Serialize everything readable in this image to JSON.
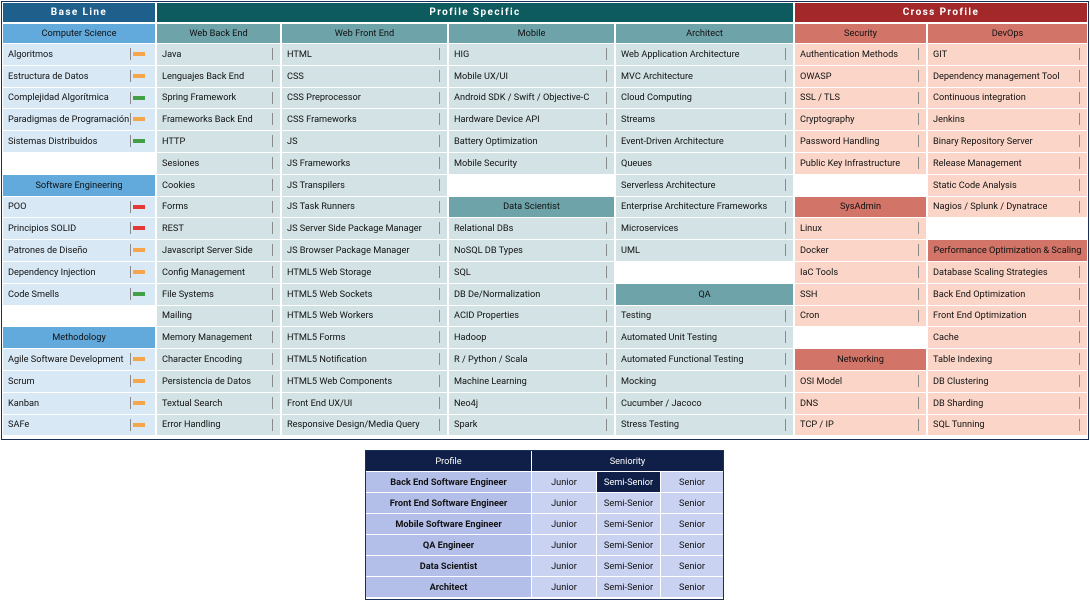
{
  "grid": {
    "sections": [
      {
        "title": "Base Line",
        "colors": {
          "title": "#1f5f8b",
          "header": "#62a9dc",
          "cell": "#d8e8f5"
        },
        "columns": [
          {
            "groups": [
              {
                "title": "Computer Science",
                "items": [
                  {
                    "name": "Algoritmos",
                    "color": "#f5a54a"
                  },
                  {
                    "name": "Estructura de Datos",
                    "color": "#f5a54a"
                  },
                  {
                    "name": "Complejidad Algorítmica",
                    "color": "#43a047"
                  },
                  {
                    "name": "Paradigmas de Programación",
                    "color": "#f5a54a"
                  },
                  {
                    "name": "Sistemas Distribuidos",
                    "color": "#43a047"
                  }
                ]
              },
              {
                "title": "Software Engineering",
                "items": [
                  {
                    "name": "POO",
                    "color": "#e53935"
                  },
                  {
                    "name": "Principios SOLID",
                    "color": "#e53935"
                  },
                  {
                    "name": "Patrones de Diseño",
                    "color": "#f5a54a"
                  },
                  {
                    "name": "Dependency Injection",
                    "color": "#f5a54a"
                  },
                  {
                    "name": "Code Smells",
                    "color": "#43a047"
                  }
                ]
              },
              {
                "title": "Methodology",
                "items": [
                  {
                    "name": "Agile Software Development",
                    "color": "#f5a54a"
                  },
                  {
                    "name": "Scrum",
                    "color": "#f5a54a"
                  },
                  {
                    "name": "Kanban",
                    "color": "#f5a54a"
                  },
                  {
                    "name": "SAFe",
                    "color": "#f5a54a"
                  }
                ]
              }
            ]
          }
        ]
      },
      {
        "title": "Profile Specific",
        "colors": {
          "title": "#0d5b5e",
          "header": "#6ea3a9",
          "cell": "#d2e2e5"
        },
        "columns": [
          {
            "groups": [
              {
                "title": "Web Back End",
                "items": [
                  "Java",
                  "Lenguajes Back End",
                  "Spring Framework",
                  "Frameworks Back End",
                  "HTTP",
                  "Sesiones",
                  "Cookies",
                  "Forms",
                  "REST",
                  "Javascript Server Side",
                  "Config Management",
                  "File Systems",
                  "Mailing",
                  "Memory Management",
                  "Character Encoding",
                  "Persistencia de Datos",
                  "Textual Search",
                  "Error Handling"
                ]
              }
            ]
          },
          {
            "groups": [
              {
                "title": "Web Front End",
                "items": [
                  "HTML",
                  "CSS",
                  "CSS Preprocessor",
                  "CSS Frameworks",
                  "JS",
                  "JS Frameworks",
                  "JS Transpilers",
                  "JS Task Runners",
                  "JS Server Side Package Manager",
                  "JS Browser Package Manager",
                  "HTML5 Web Storage",
                  "HTML5 Web Sockets",
                  "HTML5 Web Workers",
                  "HTML5 Forms",
                  "HTML5 Notification",
                  "HTML5 Web Components",
                  "Front End UX/UI",
                  "Responsive Design/Media Query"
                ]
              }
            ]
          },
          {
            "groups": [
              {
                "title": "Mobile",
                "items": [
                  "HIG",
                  "Mobile UX/UI",
                  "Android SDK / Swift / Objective-C",
                  "Hardware Device API",
                  "Battery Optimization",
                  "Mobile Security"
                ]
              },
              {
                "title": "Data Scientist",
                "items": [
                  "Relational DBs",
                  "NoSQL DB Types",
                  "SQL",
                  "DB De/Normalization",
                  "ACID Properties",
                  "Hadoop",
                  "R / Python / Scala",
                  "Machine Learning",
                  "Neo4j",
                  "Spark"
                ]
              }
            ]
          },
          {
            "groups": [
              {
                "title": "Architect",
                "items": [
                  "Web Application Architecture",
                  "MVC Architecture",
                  "Cloud Computing",
                  "Streams",
                  "Event-Driven Architecture",
                  "Queues",
                  "Serverless Architecture",
                  "Enterprise Architecture Frameworks",
                  "Microservices",
                  "UML"
                ]
              },
              {
                "title": "QA",
                "items": [
                  "Testing",
                  "Automated Unit Testing",
                  "Automated Functional Testing",
                  "Mocking",
                  "Cucumber / Jacoco",
                  "Stress Testing"
                ]
              }
            ]
          }
        ]
      },
      {
        "title": "Cross Profile",
        "colors": {
          "title": "#a3282a",
          "header": "#d27468",
          "cell": "#fbd6c8"
        },
        "columns": [
          {
            "groups": [
              {
                "title": "Security",
                "items": [
                  "Authentication Methods",
                  "OWASP",
                  "SSL / TLS",
                  "Cryptography",
                  "Password Handling",
                  "Public Key Infrastructure"
                ]
              },
              {
                "title": "SysAdmin",
                "items": [
                  "Linux",
                  "Docker",
                  "IaC Tools",
                  "SSH",
                  "Cron"
                ]
              },
              {
                "title": "Networking",
                "items": [
                  "OSI Model",
                  "DNS",
                  "TCP / IP"
                ]
              }
            ]
          },
          {
            "groups": [
              {
                "title": "DevOps",
                "items": [
                  "GIT",
                  "Dependency management Tool",
                  "Continuous integration",
                  "Jenkins",
                  "Binary Repository Server",
                  "Release Management",
                  "Static Code Analysis",
                  "Nagios / Splunk / Dynatrace"
                ]
              },
              {
                "title": "Performance Optimization & Scaling",
                "items": [
                  "Database Scaling Strategies",
                  "Back End Optimization",
                  "Front End Optimization",
                  "Cache",
                  "Table Indexing",
                  "DB Clustering",
                  "DB Sharding",
                  "SQL Tunning"
                ]
              }
            ]
          }
        ]
      }
    ]
  },
  "seniority": {
    "headers": [
      "Profile",
      "Seniority"
    ],
    "rows": [
      {
        "profile": "Back End Software Engineer",
        "levels": [
          "Junior",
          "Semi-Senior",
          "Senior"
        ]
      },
      {
        "profile": "Front End Software Engineer",
        "levels": [
          "Junior",
          "Semi-Senior",
          "Senior"
        ]
      },
      {
        "profile": "Mobile Software Engineer",
        "levels": [
          "Junior",
          "Semi-Senior",
          "Senior"
        ]
      },
      {
        "profile": "QA Engineer",
        "levels": [
          "Junior",
          "Semi-Senior",
          "Senior"
        ]
      },
      {
        "profile": "Data Scientist",
        "levels": [
          "Junior",
          "Semi-Senior",
          "Senior"
        ]
      },
      {
        "profile": "Architect",
        "levels": [
          "Junior",
          "Semi-Senior",
          "Senior"
        ]
      }
    ]
  }
}
